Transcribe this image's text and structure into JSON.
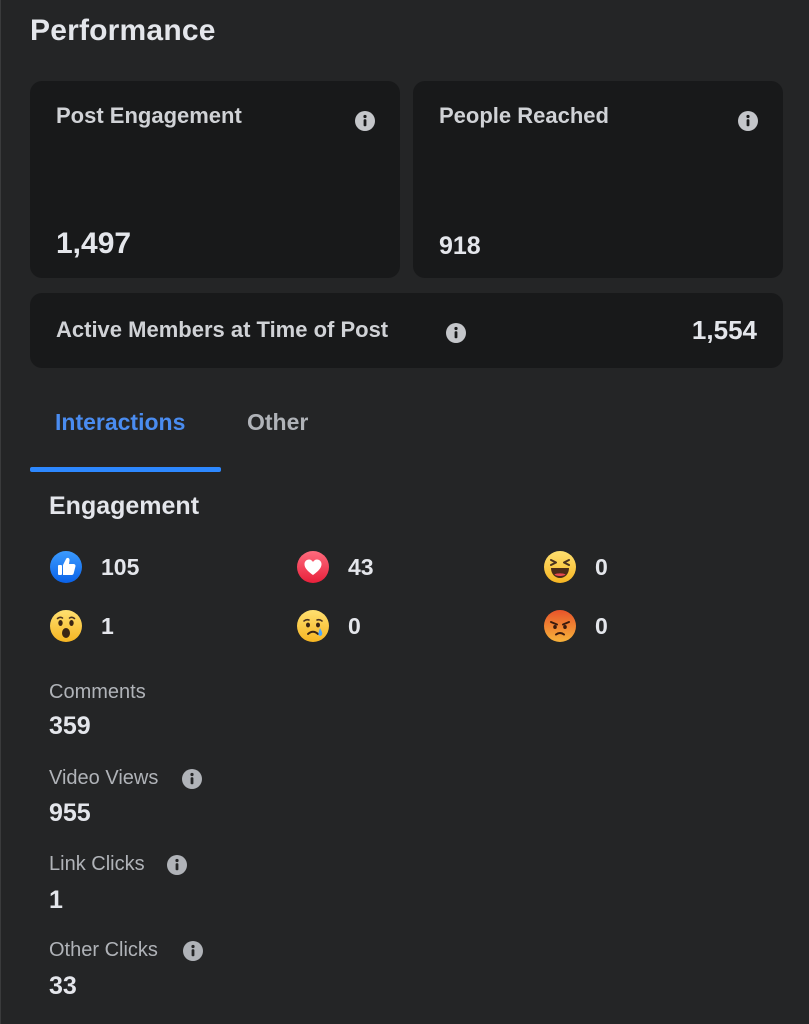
{
  "page": {
    "title": "Performance"
  },
  "cards": {
    "post_engagement": {
      "label": "Post Engagement",
      "value": "1,497"
    },
    "people_reached": {
      "label": "People Reached",
      "value": "918"
    },
    "active_members": {
      "label": "Active Members at Time of Post",
      "value": "1,554"
    }
  },
  "tabs": [
    {
      "label": "Interactions",
      "active": true
    },
    {
      "label": "Other",
      "active": false
    }
  ],
  "engagement": {
    "title": "Engagement",
    "reactions": [
      {
        "name": "like",
        "icon": "like-icon",
        "count": "105"
      },
      {
        "name": "love",
        "icon": "love-icon",
        "count": "43"
      },
      {
        "name": "haha",
        "icon": "haha-icon",
        "count": "0"
      },
      {
        "name": "wow",
        "icon": "wow-icon",
        "count": "1"
      },
      {
        "name": "sad",
        "icon": "sad-icon",
        "count": "0"
      },
      {
        "name": "angry",
        "icon": "angry-icon",
        "count": "0"
      }
    ]
  },
  "metrics": [
    {
      "label": "Comments",
      "value": "359",
      "has_info": false
    },
    {
      "label": "Video Views",
      "value": "955",
      "has_info": true
    },
    {
      "label": "Link Clicks",
      "value": "1",
      "has_info": true
    },
    {
      "label": "Other Clicks",
      "value": "33",
      "has_info": true
    }
  ],
  "colors": {
    "background": "#242526",
    "card": "#18191a",
    "accent": "#2d88ff",
    "text_primary": "#e4e6eb",
    "text_secondary": "#b0b3b8"
  }
}
